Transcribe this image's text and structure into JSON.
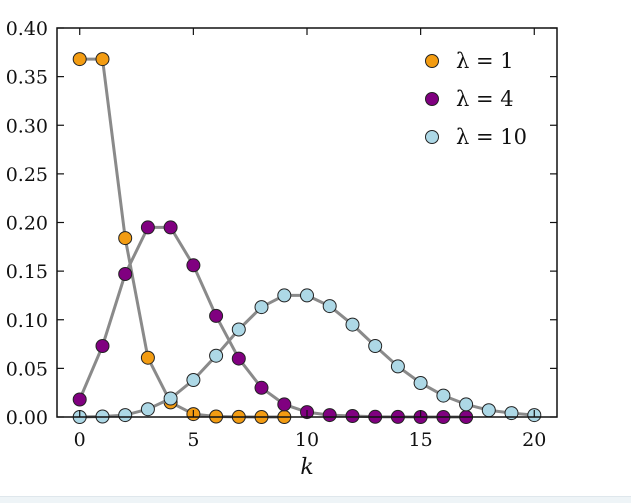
{
  "chart_data": {
    "type": "line",
    "title": "",
    "xlabel": "k",
    "ylabel": "",
    "xlim": [
      -1,
      21
    ],
    "ylim": [
      0,
      0.4
    ],
    "xticks": [
      0,
      5,
      10,
      15,
      20
    ],
    "xtick_labels": [
      "0",
      "5",
      "10",
      "15",
      "20"
    ],
    "yticks": [
      0.0,
      0.05,
      0.1,
      0.15,
      0.2,
      0.25,
      0.3,
      0.35,
      0.4
    ],
    "ytick_labels": [
      "0.00",
      "0.05",
      "0.10",
      "0.15",
      "0.20",
      "0.25",
      "0.30",
      "0.35",
      "0.40"
    ],
    "grid": false,
    "legend_position": "top-right",
    "line_color": "#8a8a8a",
    "series": [
      {
        "name": "λ = 1",
        "color": "#f39c12",
        "x": [
          0,
          1,
          2,
          3,
          4,
          5,
          6,
          7,
          8,
          9
        ],
        "y": [
          0.368,
          0.368,
          0.184,
          0.061,
          0.015,
          0.003,
          0.0005,
          0.0001,
          0.0,
          0.0
        ]
      },
      {
        "name": "λ = 4",
        "color": "#800080",
        "x": [
          0,
          1,
          2,
          3,
          4,
          5,
          6,
          7,
          8,
          9,
          10,
          11,
          12,
          13,
          14,
          15,
          16,
          17
        ],
        "y": [
          0.018,
          0.073,
          0.147,
          0.195,
          0.195,
          0.156,
          0.104,
          0.06,
          0.03,
          0.013,
          0.005,
          0.002,
          0.001,
          0.0002,
          0.0001,
          0.0,
          0.0,
          0.0
        ]
      },
      {
        "name": "λ = 10",
        "color": "#add8e6",
        "x": [
          0,
          1,
          2,
          3,
          4,
          5,
          6,
          7,
          8,
          9,
          10,
          11,
          12,
          13,
          14,
          15,
          16,
          17,
          18,
          19,
          20
        ],
        "y": [
          0.0,
          0.0005,
          0.002,
          0.008,
          0.019,
          0.038,
          0.063,
          0.09,
          0.113,
          0.125,
          0.125,
          0.114,
          0.095,
          0.073,
          0.052,
          0.035,
          0.022,
          0.013,
          0.007,
          0.004,
          0.002
        ]
      }
    ]
  }
}
